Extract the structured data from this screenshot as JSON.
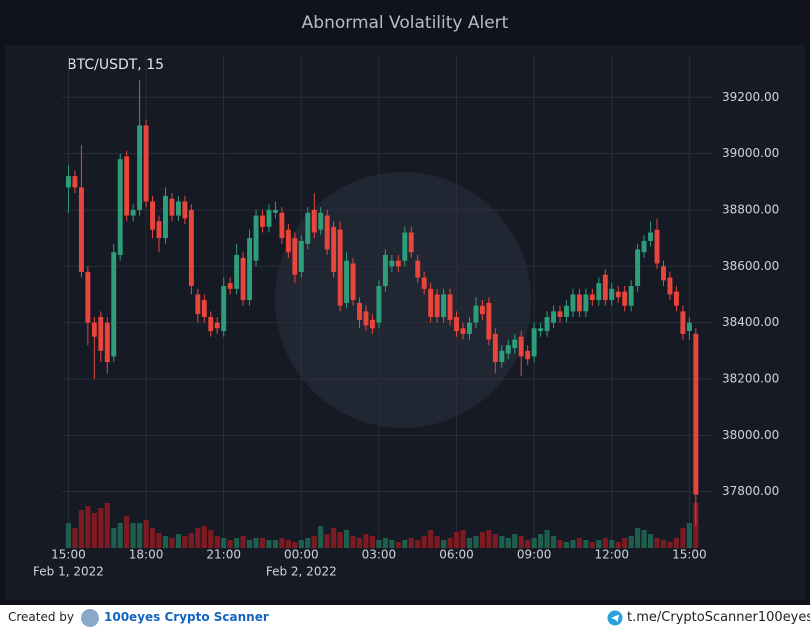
{
  "chart_data": {
    "type": "candlestick",
    "title": "Abnormal Volatility Alert",
    "symbol_label": "BTC/USDT, 15",
    "open": [
      38880,
      38920,
      38880,
      38580,
      38400,
      38420,
      38400,
      38280,
      38640,
      38990,
      38780,
      38800,
      39100,
      38830,
      38760,
      38700,
      38840,
      38780,
      38830,
      38800,
      38500,
      38480,
      38420,
      38400,
      38370,
      38540,
      38520,
      38630,
      38480,
      38620,
      38780,
      38740,
      38790,
      38790,
      38730,
      38700,
      38580,
      38680,
      38800,
      38730,
      38780,
      38740,
      38730,
      38470,
      38610,
      38470,
      38440,
      38410,
      38400,
      38530,
      38600,
      38620,
      38620,
      38720,
      38620,
      38560,
      38520,
      38500,
      38420,
      38500,
      38420,
      38380,
      38360,
      38400,
      38460,
      38470,
      38360,
      38260,
      38290,
      38310,
      38350,
      38300,
      38280,
      38370,
      38370,
      38400,
      38440,
      38420,
      38440,
      38500,
      38440,
      38500,
      38480,
      38570,
      38480,
      38510,
      38510,
      38460,
      38530,
      38650,
      38690,
      38730,
      38600,
      38560,
      38510,
      38440,
      38370,
      38360
    ],
    "high": [
      38960,
      38940,
      39030,
      38600,
      38420,
      38440,
      38420,
      38680,
      39000,
      39010,
      38820,
      39260,
      39120,
      38850,
      38780,
      38880,
      38860,
      38850,
      38850,
      38820,
      38520,
      38500,
      38440,
      38420,
      38560,
      38560,
      38680,
      38650,
      38730,
      38800,
      38800,
      38820,
      38830,
      38810,
      38750,
      38720,
      38710,
      38810,
      38860,
      38810,
      38800,
      38760,
      38760,
      38650,
      38630,
      38490,
      38460,
      38430,
      38550,
      38660,
      38640,
      38640,
      38740,
      38740,
      38640,
      38580,
      38540,
      38520,
      38520,
      38520,
      38440,
      38400,
      38420,
      38490,
      38480,
      38490,
      38380,
      38320,
      38340,
      38360,
      38370,
      38320,
      38400,
      38400,
      38440,
      38460,
      38460,
      38480,
      38520,
      38520,
      38520,
      38520,
      38560,
      38590,
      38540,
      38530,
      38530,
      38550,
      38680,
      38710,
      38760,
      38770,
      38620,
      38580,
      38530,
      38460,
      38420,
      38380
    ],
    "low": [
      38790,
      38860,
      38560,
      38320,
      38200,
      38260,
      38220,
      38260,
      38620,
      38760,
      38760,
      38780,
      38810,
      38700,
      38650,
      38680,
      38760,
      38760,
      38750,
      38500,
      38400,
      38400,
      38350,
      38360,
      38350,
      38500,
      38500,
      38460,
      38460,
      38600,
      38720,
      38720,
      38770,
      38680,
      38630,
      38540,
      38560,
      38660,
      38700,
      38710,
      38640,
      38560,
      38440,
      38450,
      38460,
      38380,
      38370,
      38360,
      38380,
      38510,
      38580,
      38580,
      38600,
      38630,
      38540,
      38500,
      38400,
      38400,
      38400,
      38390,
      38350,
      38340,
      38340,
      38380,
      38410,
      38320,
      38220,
      38240,
      38270,
      38290,
      38210,
      38250,
      38260,
      38350,
      38350,
      38380,
      38400,
      38400,
      38420,
      38420,
      38420,
      38460,
      38460,
      38460,
      38460,
      38470,
      38440,
      38440,
      38510,
      38630,
      38670,
      38590,
      38530,
      38480,
      38440,
      38340,
      38340,
      37680
    ],
    "close": [
      38920,
      38880,
      38580,
      38400,
      38350,
      38300,
      38260,
      38650,
      38980,
      38780,
      38800,
      39100,
      38830,
      38730,
      38700,
      38850,
      38780,
      38830,
      38770,
      38530,
      38430,
      38420,
      38370,
      38380,
      38530,
      38520,
      38640,
      38480,
      38700,
      38780,
      38740,
      38800,
      38800,
      38700,
      38650,
      38570,
      38690,
      38790,
      38720,
      38790,
      38660,
      38580,
      38460,
      38620,
      38480,
      38410,
      38390,
      38380,
      38530,
      38640,
      38620,
      38600,
      38720,
      38650,
      38560,
      38520,
      38420,
      38420,
      38500,
      38410,
      38370,
      38360,
      38400,
      38460,
      38430,
      38340,
      38260,
      38300,
      38320,
      38340,
      38280,
      38270,
      38380,
      38380,
      38420,
      38440,
      38420,
      38460,
      38500,
      38440,
      38500,
      38480,
      38540,
      38480,
      38520,
      38490,
      38460,
      38530,
      38660,
      38690,
      38720,
      38610,
      38550,
      38500,
      38460,
      38360,
      38400,
      37790
    ],
    "volume": [
      25,
      20,
      38,
      42,
      35,
      40,
      45,
      20,
      25,
      32,
      25,
      25,
      28,
      20,
      15,
      12,
      10,
      14,
      12,
      15,
      20,
      22,
      18,
      12,
      10,
      8,
      10,
      12,
      8,
      10,
      10,
      8,
      8,
      10,
      8,
      6,
      8,
      10,
      12,
      22,
      14,
      20,
      16,
      18,
      12,
      10,
      14,
      12,
      8,
      10,
      8,
      6,
      8,
      10,
      8,
      12,
      18,
      12,
      8,
      10,
      16,
      18,
      10,
      12,
      16,
      18,
      14,
      12,
      10,
      14,
      12,
      8,
      10,
      14,
      18,
      12,
      8,
      6,
      8,
      10,
      8,
      6,
      8,
      10,
      8,
      6,
      10,
      12,
      20,
      18,
      14,
      10,
      8,
      6,
      10,
      20,
      25,
      45
    ],
    "xlim": [
      -1,
      99.5
    ],
    "xticks": [
      {
        "value": 0,
        "label": "15:00"
      },
      {
        "value": 12,
        "label": "18:00"
      },
      {
        "value": 24,
        "label": "21:00"
      },
      {
        "value": 36,
        "label": "00:00"
      },
      {
        "value": 48,
        "label": "03:00"
      },
      {
        "value": 60,
        "label": "06:00"
      },
      {
        "value": 72,
        "label": "09:00"
      },
      {
        "value": 84,
        "label": "12:00"
      },
      {
        "value": 96,
        "label": "15:00"
      }
    ],
    "date_labels": [
      {
        "value": 0,
        "label": "Feb 1, 2022"
      },
      {
        "value": 36,
        "label": "Feb 2, 2022"
      }
    ],
    "ylim": [
      37600,
      39350
    ],
    "yticks": [
      {
        "value": 37800,
        "label": "37800.00"
      },
      {
        "value": 38000,
        "label": "38000.00"
      },
      {
        "value": 38200,
        "label": "38200.00"
      },
      {
        "value": 38400,
        "label": "38400.00"
      },
      {
        "value": 38600,
        "label": "38600.00"
      },
      {
        "value": 38800,
        "label": "38800.00"
      },
      {
        "value": 39000,
        "label": "39000.00"
      },
      {
        "value": 39200,
        "label": "39200.00"
      }
    ],
    "grid": true,
    "colors": {
      "up": "#2e9e7a",
      "down": "#e8453c",
      "volume_up": "#1e5e4c",
      "volume_down": "#7d1a22"
    }
  },
  "footer": {
    "created_by": "Created by",
    "brand": "100eyes Crypto Scanner",
    "link": "t.me/CryptoScanner100eyes"
  }
}
